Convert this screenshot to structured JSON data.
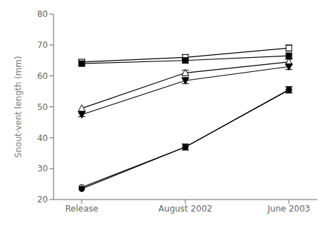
{
  "chart_data": {
    "type": "line",
    "categories": [
      "Release",
      "August 2002",
      "June 2003"
    ],
    "ylabel": "Snout-vent length (mm)",
    "ylim": [
      20,
      80
    ],
    "yticks": [
      20,
      30,
      40,
      50,
      60,
      70,
      80
    ],
    "grid": false,
    "series": [
      {
        "color": "black",
        "marker": "square_open",
        "values": [
          64.5,
          66.0,
          69.0
        ],
        "yerr": [
          0.8,
          0.9,
          1.0
        ]
      },
      {
        "color": "black",
        "marker": "square",
        "values": [
          64.0,
          65.0,
          66.5
        ],
        "yerr": [
          0.8,
          0.8,
          0.9
        ]
      },
      {
        "color": "black",
        "marker": "triangle_up_open",
        "values": [
          49.5,
          61.0,
          64.5
        ],
        "yerr": [
          null,
          0.8,
          0.9
        ]
      },
      {
        "color": "black",
        "marker": "triangle_down",
        "values": [
          47.5,
          58.5,
          63.0
        ],
        "yerr": [
          0.7,
          1.0,
          0.9
        ]
      },
      {
        "color": "black",
        "marker": "circle_open",
        "values": [
          24.0,
          37.0,
          55.5
        ],
        "yerr": [
          null,
          0.9,
          1.0
        ]
      },
      {
        "color": "black",
        "marker": "circle",
        "values": [
          23.5,
          37.0,
          55.5
        ],
        "yerr": [
          null,
          1.0,
          1.0
        ]
      }
    ]
  }
}
